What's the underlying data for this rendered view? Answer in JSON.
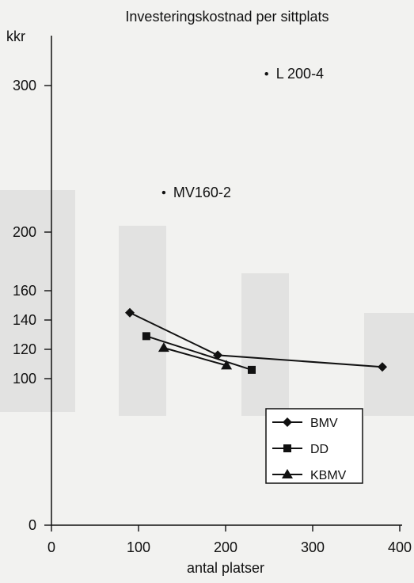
{
  "chart_data": {
    "type": "line",
    "title": "Investeringskostnad per sittplats",
    "ylabel": "kkr",
    "xlabel": "antal platser",
    "xlim": [
      0,
      400
    ],
    "ylim": [
      0,
      330
    ],
    "x_ticks": [
      0,
      100,
      200,
      300,
      400
    ],
    "y_ticks": [
      0,
      100,
      120,
      140,
      160,
      200,
      300
    ],
    "series": [
      {
        "name": "BMV",
        "marker": "diamond",
        "points": [
          [
            90,
            145
          ],
          [
            191,
            116
          ],
          [
            380,
            108
          ]
        ]
      },
      {
        "name": "DD",
        "marker": "square",
        "points": [
          [
            109,
            129
          ],
          [
            230,
            106
          ]
        ]
      },
      {
        "name": "KBMV",
        "marker": "triangle",
        "points": [
          [
            129,
            121
          ],
          [
            201,
            109
          ]
        ]
      }
    ],
    "annotations": [
      {
        "label": "L 200-4",
        "x": 247,
        "y": 308
      },
      {
        "label": "MV160-2",
        "x": 129,
        "y": 227
      }
    ],
    "legend_position": "bottom-right",
    "grid": false
  }
}
